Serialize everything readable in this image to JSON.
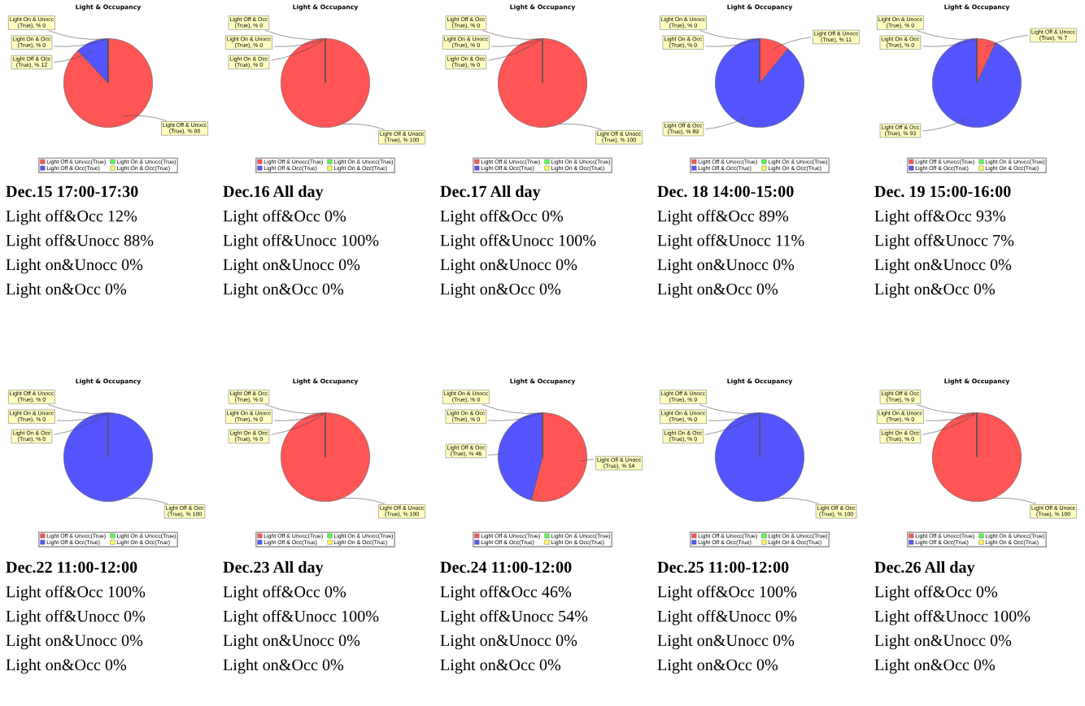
{
  "chart_data": [
    {
      "type": "pie",
      "title": "Light & Occupancy",
      "subtitle": "Dec.15 17:00-17:30",
      "categories": [
        "Light Off & Unocc(True)",
        "Light Off & Occ(True)",
        "Light On & Unocc(True)",
        "Light On & Occ(True)"
      ],
      "values": [
        88,
        12,
        0,
        0
      ],
      "colors": [
        "#ff5555",
        "#5555ff",
        "#55ff55",
        "#ffff55"
      ],
      "value_labels": [
        "Light Off & Unocc\n(True), % 88",
        "Light Off & Occ\n(True), % 12",
        "Light On & Unocc\n(True), % 0",
        "Light On & Occ\n(True), % 0"
      ],
      "legend": "bottom",
      "annotations": [
        "Light off&Occ 12%",
        "Light off&Unocc 88%",
        "Light on&Unocc 0%",
        "Light on&Occ 0%"
      ]
    },
    {
      "type": "pie",
      "title": "Light & Occupancy",
      "subtitle": "Dec.16 All day",
      "categories": [
        "Light Off & Unocc(True)",
        "Light Off & Occ(True)",
        "Light On & Unocc(True)",
        "Light On & Occ(True)"
      ],
      "values": [
        100,
        0,
        0,
        0
      ],
      "colors": [
        "#ff5555",
        "#5555ff",
        "#55ff55",
        "#ffff55"
      ],
      "value_labels": [
        "Light Off & Unocc\n(True), % 100",
        "Light Off & Occ\n(True), % 0",
        "Light On & Unocc\n(True), % 0",
        "Light On & Occ\n(True), % 0"
      ],
      "legend": "bottom",
      "annotations": [
        "Light off&Occ 0%",
        "Light off&Unocc 100%",
        "Light on&Unocc 0%",
        "Light on&Occ 0%"
      ]
    },
    {
      "type": "pie",
      "title": "Light & Occupancy",
      "subtitle": "Dec.17 All day",
      "categories": [
        "Light Off & Unocc(True)",
        "Light Off & Occ(True)",
        "Light On & Unocc(True)",
        "Light On & Occ(True)"
      ],
      "values": [
        100,
        0,
        0,
        0
      ],
      "colors": [
        "#ff5555",
        "#5555ff",
        "#55ff55",
        "#ffff55"
      ],
      "value_labels": [
        "Light Off & Unocc\n(True), % 100",
        "Light Off & Occ\n(True), % 0",
        "Light On & Unocc\n(True), % 0",
        "Light On & Occ\n(True), % 0"
      ],
      "legend": "bottom",
      "annotations": [
        "Light off&Occ 0%",
        "Light off&Unocc 100%",
        "Light on&Unocc 0%",
        "Light on&Occ 0%"
      ]
    },
    {
      "type": "pie",
      "title": "Light & Occupancy",
      "subtitle": "Dec. 18 14:00-15:00",
      "categories": [
        "Light Off & Unocc(True)",
        "Light Off & Occ(True)",
        "Light On & Unocc(True)",
        "Light On & Occ(True)"
      ],
      "values": [
        11,
        89,
        0,
        0
      ],
      "colors": [
        "#ff5555",
        "#5555ff",
        "#55ff55",
        "#ffff55"
      ],
      "value_labels": [
        "Light Off & Unocc\n(True), % 11",
        "Light Off & Occ\n(True), % 89",
        "Light On & Unocc\n(True), % 0",
        "Light On & Occ\n(True), % 0"
      ],
      "legend": "bottom",
      "annotations": [
        "Light off&Occ 89%",
        "Light off&Unocc 11%",
        "Light on&Unocc 0%",
        "Light on&Occ 0%"
      ]
    },
    {
      "type": "pie",
      "title": "Light & Occupancy",
      "subtitle": "Dec. 19 15:00-16:00",
      "categories": [
        "Light Off & Unocc(True)",
        "Light Off & Occ(True)",
        "Light On & Unocc(True)",
        "Light On & Occ(True)"
      ],
      "values": [
        7,
        93,
        0,
        0
      ],
      "colors": [
        "#ff5555",
        "#5555ff",
        "#55ff55",
        "#ffff55"
      ],
      "value_labels": [
        "Light Off & Unocc\n(True), % 7",
        "Light Off & Occ\n(True), % 93",
        "Light On & Unocc\n(True), % 0",
        "Light On & Occ\n(True), % 0"
      ],
      "legend": "bottom",
      "annotations": [
        "Light off&Occ 93%",
        "Light off&Unocc 7%",
        "Light on&Unocc 0%",
        "Light on&Occ 0%"
      ]
    },
    {
      "type": "pie",
      "title": "Light & Occupancy",
      "subtitle": "Dec.22 11:00-12:00",
      "categories": [
        "Light Off & Unocc(True)",
        "Light Off & Occ(True)",
        "Light On & Unocc(True)",
        "Light On & Occ(True)"
      ],
      "values": [
        0,
        100,
        0,
        0
      ],
      "colors": [
        "#ff5555",
        "#5555ff",
        "#55ff55",
        "#ffff55"
      ],
      "value_labels": [
        "Light Off & Unocc\n(True), % 0",
        "Light Off & Occ\n(True), % 100",
        "Light On & Unocc\n(True), % 0",
        "Light On & Occ\n(True), % 0"
      ],
      "legend": "bottom",
      "annotations": [
        "Light off&Occ 100%",
        "Light off&Unocc 0%",
        "Light on&Unocc 0%",
        "Light on&Occ 0%"
      ]
    },
    {
      "type": "pie",
      "title": "Light & Occupancy",
      "subtitle": "Dec.23 All day",
      "categories": [
        "Light Off & Unocc(True)",
        "Light Off & Occ(True)",
        "Light On & Unocc(True)",
        "Light On & Occ(True)"
      ],
      "values": [
        100,
        0,
        0,
        0
      ],
      "colors": [
        "#ff5555",
        "#5555ff",
        "#55ff55",
        "#ffff55"
      ],
      "value_labels": [
        "Light Off & Unocc\n(True), % 100",
        "Light Off & Occ\n(True), % 0",
        "Light On & Unocc\n(True), % 0",
        "Light On & Occ\n(True), % 0"
      ],
      "legend": "bottom",
      "annotations": [
        "Light off&Occ 0%",
        "Light off&Unocc 100%",
        "Light on&Unocc 0%",
        "Light on&Occ 0%"
      ]
    },
    {
      "type": "pie",
      "title": "Light & Occupancy",
      "subtitle": "Dec.24 11:00-12:00",
      "categories": [
        "Light Off & Unocc(True)",
        "Light Off & Occ(True)",
        "Light On & Unocc(True)",
        "Light On & Occ(True)"
      ],
      "values": [
        54,
        46,
        0,
        0
      ],
      "colors": [
        "#ff5555",
        "#5555ff",
        "#55ff55",
        "#ffff55"
      ],
      "value_labels": [
        "Light Off & Unocc\n(True), % 54",
        "Light Off & Occ\n(True), % 46",
        "Light On & Unocc\n(True), % 0",
        "Light On & Occ\n(True), % 0"
      ],
      "legend": "bottom",
      "annotations": [
        "Light off&Occ 46%",
        "Light off&Unocc 54%",
        "Light on&Unocc 0%",
        "Light on&Occ 0%"
      ]
    },
    {
      "type": "pie",
      "title": "Light & Occupancy",
      "subtitle": "Dec.25 11:00-12:00",
      "categories": [
        "Light Off & Unocc(True)",
        "Light Off & Occ(True)",
        "Light On & Unocc(True)",
        "Light On & Occ(True)"
      ],
      "values": [
        0,
        100,
        0,
        0
      ],
      "colors": [
        "#ff5555",
        "#5555ff",
        "#55ff55",
        "#ffff55"
      ],
      "value_labels": [
        "Light Off & Unocc\n(True), % 0",
        "Light Off & Occ\n(True), % 100",
        "Light On & Unocc\n(True), % 0",
        "Light On & Occ\n(True), % 0"
      ],
      "legend": "bottom",
      "annotations": [
        "Light off&Occ 100%",
        "Light off&Unocc 0%",
        "Light on&Unocc 0%",
        "Light on&Occ 0%"
      ]
    },
    {
      "type": "pie",
      "title": "Light & Occupancy",
      "subtitle": "Dec.26 All day",
      "categories": [
        "Light Off & Unocc(True)",
        "Light Off & Occ(True)",
        "Light On & Unocc(True)",
        "Light On & Occ(True)"
      ],
      "values": [
        100,
        0,
        0,
        0
      ],
      "colors": [
        "#ff5555",
        "#5555ff",
        "#55ff55",
        "#ffff55"
      ],
      "value_labels": [
        "Light Off & Unocc\n(True), % 100",
        "Light Off & Occ\n(True), % 0",
        "Light On & Unocc\n(True), % 0",
        "Light On & Occ\n(True), % 0"
      ],
      "legend": "bottom",
      "annotations": [
        "Light off&Occ 0%",
        "Light off&Unocc 100%",
        "Light on&Unocc 0%",
        "Light on&Occ 0%"
      ]
    }
  ]
}
